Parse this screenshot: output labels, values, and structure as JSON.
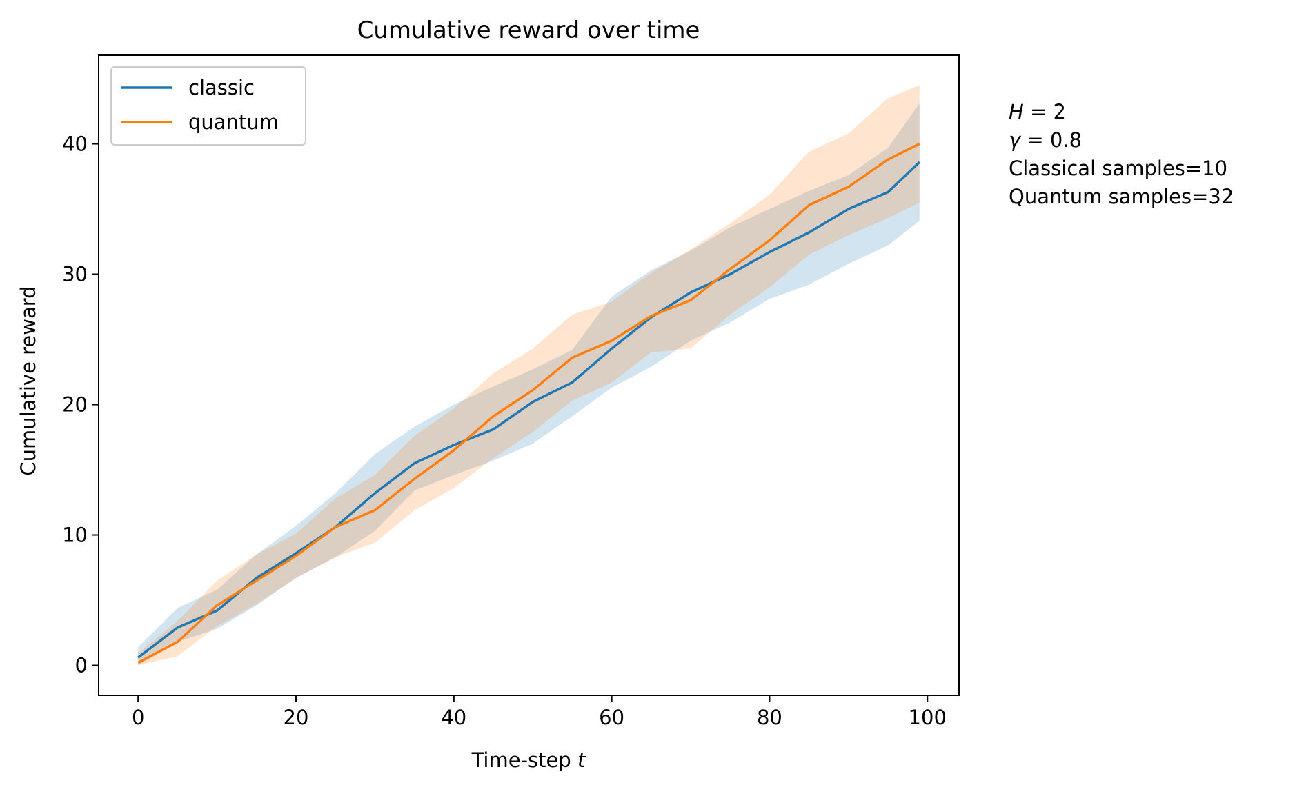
{
  "chart_data": {
    "type": "line",
    "title": "Cumulative reward over time",
    "xlabel": "Time-step t",
    "xlabel_text": "Time-step ",
    "xlabel_var": "t",
    "ylabel": "Cumulative reward",
    "xlim": [
      -5,
      104
    ],
    "ylim": [
      -2.3,
      46.8
    ],
    "xticks": [
      0,
      20,
      40,
      60,
      80,
      100
    ],
    "yticks": [
      0,
      10,
      20,
      30,
      40
    ],
    "grid": false,
    "legend_position": "top-left",
    "series": [
      {
        "name": "classic",
        "color": "#1f77b4",
        "band_color": "#1f77b4",
        "x": [
          0,
          5,
          10,
          15,
          20,
          25,
          30,
          35,
          40,
          45,
          50,
          55,
          60,
          65,
          70,
          75,
          80,
          85,
          90,
          95,
          99
        ],
        "values": [
          0.6,
          2.9,
          4.2,
          6.7,
          8.6,
          10.6,
          13.2,
          15.5,
          16.9,
          18.1,
          20.2,
          21.7,
          24.3,
          26.7,
          28.6,
          30.0,
          31.7,
          33.2,
          35.0,
          36.3,
          38.6
        ],
        "upper": [
          1.4,
          4.4,
          5.8,
          8.5,
          10.7,
          13.2,
          16.2,
          18.3,
          20.0,
          21.4,
          22.7,
          24.2,
          28.3,
          30.3,
          31.8,
          33.6,
          35.0,
          36.4,
          37.6,
          39.7,
          43.1
        ],
        "lower": [
          0.0,
          1.8,
          2.8,
          4.6,
          6.7,
          8.3,
          10.3,
          13.4,
          14.6,
          15.7,
          17.0,
          19.1,
          21.3,
          22.9,
          24.9,
          26.3,
          28.1,
          29.2,
          30.8,
          32.2,
          34.1
        ]
      },
      {
        "name": "quantum",
        "color": "#ff7f0e",
        "band_color": "#ff7f0e",
        "x": [
          0,
          5,
          10,
          15,
          20,
          25,
          30,
          35,
          40,
          45,
          50,
          55,
          60,
          65,
          70,
          75,
          80,
          85,
          90,
          95,
          99
        ],
        "values": [
          0.2,
          1.8,
          4.6,
          6.5,
          8.4,
          10.6,
          11.9,
          14.3,
          16.5,
          19.1,
          21.1,
          23.6,
          24.9,
          26.8,
          28.0,
          30.4,
          32.6,
          35.3,
          36.7,
          38.8,
          40.0
        ],
        "upper": [
          0.9,
          3.4,
          6.5,
          8.5,
          10.1,
          12.8,
          14.6,
          17.6,
          19.7,
          22.4,
          24.3,
          26.9,
          27.9,
          30.1,
          31.9,
          33.9,
          36.1,
          39.4,
          40.8,
          43.5,
          44.5
        ],
        "lower": [
          0.0,
          0.7,
          3.0,
          4.7,
          6.7,
          8.3,
          9.4,
          11.9,
          13.6,
          15.9,
          17.9,
          20.3,
          21.7,
          24.0,
          24.3,
          26.9,
          29.0,
          31.5,
          33.0,
          34.3,
          35.5
        ]
      }
    ]
  },
  "annotations": {
    "h_symbol": "H",
    "h_value": " = 2",
    "gamma_symbol": "γ",
    "gamma_value": " = 0.8",
    "classical_samples": "Classical samples=10",
    "quantum_samples": "Quantum samples=32"
  }
}
